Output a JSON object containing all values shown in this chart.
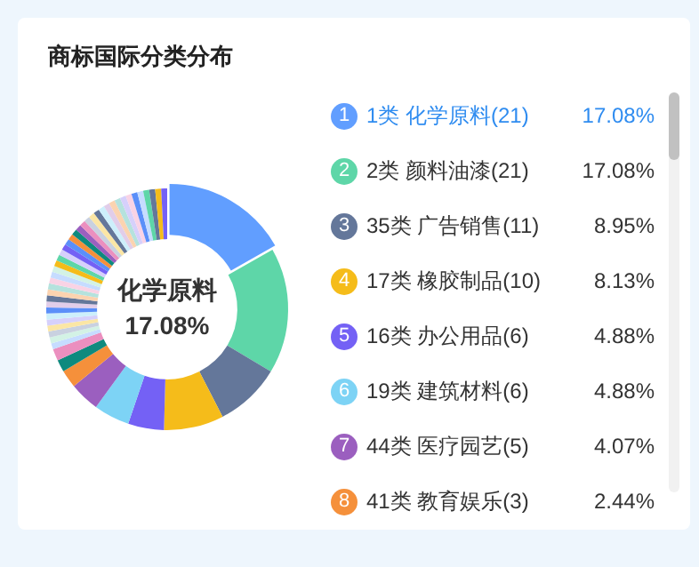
{
  "chart_data": {
    "type": "donut",
    "title": "商标国际分类分布",
    "categories": [
      "1类 化学原料(21)",
      "2类 颜料油漆(21)",
      "35类 广告销售(11)",
      "17类 橡胶制品(10)",
      "16类 办公用品(6)",
      "19类 建筑材料(6)",
      "44类 医疗园艺(5)",
      "41类 教育娱乐(3)",
      null,
      null,
      null,
      null,
      null,
      null,
      null,
      null,
      null,
      null,
      null,
      null,
      null,
      null,
      null,
      null,
      null,
      null,
      null,
      null,
      null,
      null,
      null,
      null,
      null,
      null,
      null,
      null,
      null,
      null,
      null,
      null,
      null,
      null,
      null,
      null,
      null,
      null,
      null,
      null
    ],
    "values": [
      17.08,
      17.08,
      8.95,
      8.13,
      4.88,
      4.88,
      4.07,
      2.44,
      1.63,
      1.63,
      0.81,
      0.81,
      0.82,
      0.81,
      0.81,
      0.81,
      0.82,
      0.81,
      0.81,
      0.81,
      0.82,
      0.81,
      0.81,
      0.81,
      0.82,
      0.81,
      0.81,
      0.81,
      0.82,
      0.81,
      0.81,
      0.81,
      0.82,
      0.81,
      0.81,
      0.81,
      0.82,
      0.81,
      0.81,
      0.81,
      0.81,
      0.81,
      0.81,
      0.81,
      0.81,
      0.81,
      0.81,
      0.81
    ],
    "value_labels": [
      "17.08%",
      "17.08%",
      "8.95%",
      "8.13%",
      "4.88%",
      "4.88%",
      "4.07%",
      "2.44%",
      null,
      null,
      null,
      null,
      null,
      null,
      null,
      null,
      null,
      null,
      null,
      null,
      null,
      null,
      null,
      null,
      null,
      null,
      null,
      null,
      null,
      null,
      null,
      null,
      null,
      null,
      null,
      null,
      null,
      null,
      null,
      null,
      null,
      null,
      null,
      null,
      null,
      null,
      null,
      null
    ],
    "colors": [
      "#619eff",
      "#5ed6a8",
      "#64779a",
      "#f5bc1a",
      "#7461f5",
      "#7dd3f5",
      "#9b5fbf",
      "#f5903b",
      "#0e8a7e",
      "#eb8fbf",
      "#c6dcff",
      "#d3f2e5",
      "#c9d1e0",
      "#fbe6a5",
      "#d6d0fb",
      "#cdeffb",
      "#5b8ff9",
      "#e1cde9",
      "#64779a",
      "#fbd3b0",
      "#b5e2dd",
      "#f9d3e5",
      "#c6dcff",
      "#d3f2e5",
      "#f5bc1a",
      "#5ed6a8",
      "#d6d0fb",
      "#7461f5",
      "#5b8ff9",
      "#f5903b",
      "#0e8a7e",
      "#9b5fbf",
      "#eb8fbf",
      "#c9d1e0",
      "#fbe6a5",
      "#64779a",
      "#cdeffb",
      "#e1cde9",
      "#fbd3b0",
      "#b5e2dd",
      "#d6d0fb",
      "#f9d3e5",
      "#5b8ff9",
      "#c6dcff",
      "#5ed6a8",
      "#64779a",
      "#f5bc1a",
      "#7461f5"
    ],
    "annotations": [
      "化学原料",
      "17.08%",
      "1",
      "2",
      "3",
      "4",
      "5",
      "6",
      "7",
      "8"
    ],
    "legend": "right"
  }
}
